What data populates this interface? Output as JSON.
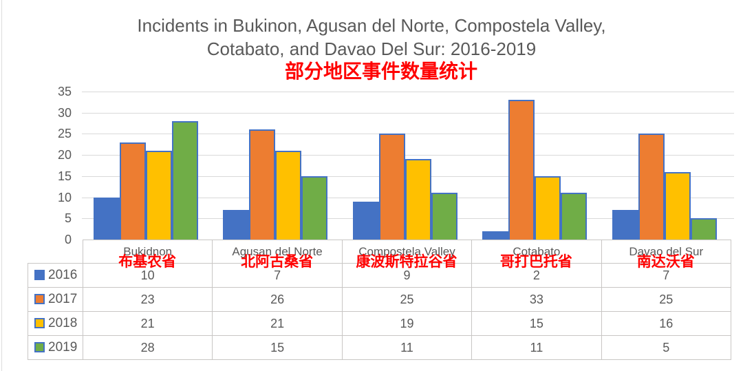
{
  "title": {
    "line1": "Incidents in Bukinon, Agusan del Norte, Compostela Valley,",
    "line2": "Cotabato, and Davao Del Sur: 2016-2019",
    "subtitle_cn": "部分地区事件数量统计"
  },
  "colors": {
    "title_text": "#595959",
    "axis_text": "#595959",
    "subtitle_red": "#FF0000",
    "gridline": "#D9D9D9",
    "table_border": "#C8C6C4",
    "bar_border": "#4472C4"
  },
  "chart_data": {
    "type": "bar",
    "title": "Incidents in Bukinon, Agusan del Norte, Compostela Valley, Cotabato, and Davao Del Sur: 2016-2019",
    "subtitle": "部分地区事件数量统计",
    "categories": [
      "Bukidnon",
      "Agusan del Norte",
      "Compostela Valley",
      "Cotabato",
      "Davao del Sur"
    ],
    "categories_cn": [
      "布基农省",
      "北阿古桑省",
      "康波斯特拉谷省",
      "哥打巴托省",
      "南达沃省"
    ],
    "series": [
      {
        "name": "2016",
        "color": "#4472C4",
        "values": [
          10,
          7,
          9,
          2,
          7
        ]
      },
      {
        "name": "2017",
        "color": "#ED7D31",
        "values": [
          23,
          26,
          25,
          33,
          25
        ]
      },
      {
        "name": "2018",
        "color": "#FFC000",
        "values": [
          21,
          21,
          19,
          15,
          16
        ]
      },
      {
        "name": "2019",
        "color": "#70AD47",
        "values": [
          28,
          15,
          11,
          11,
          5
        ]
      }
    ],
    "y_axis": {
      "min": 0,
      "max": 35,
      "step": 5,
      "ticks": [
        0,
        5,
        10,
        15,
        20,
        25,
        30,
        35
      ]
    },
    "grid": true,
    "legend_position": "left-column-of-data-table",
    "has_data_table": true
  }
}
